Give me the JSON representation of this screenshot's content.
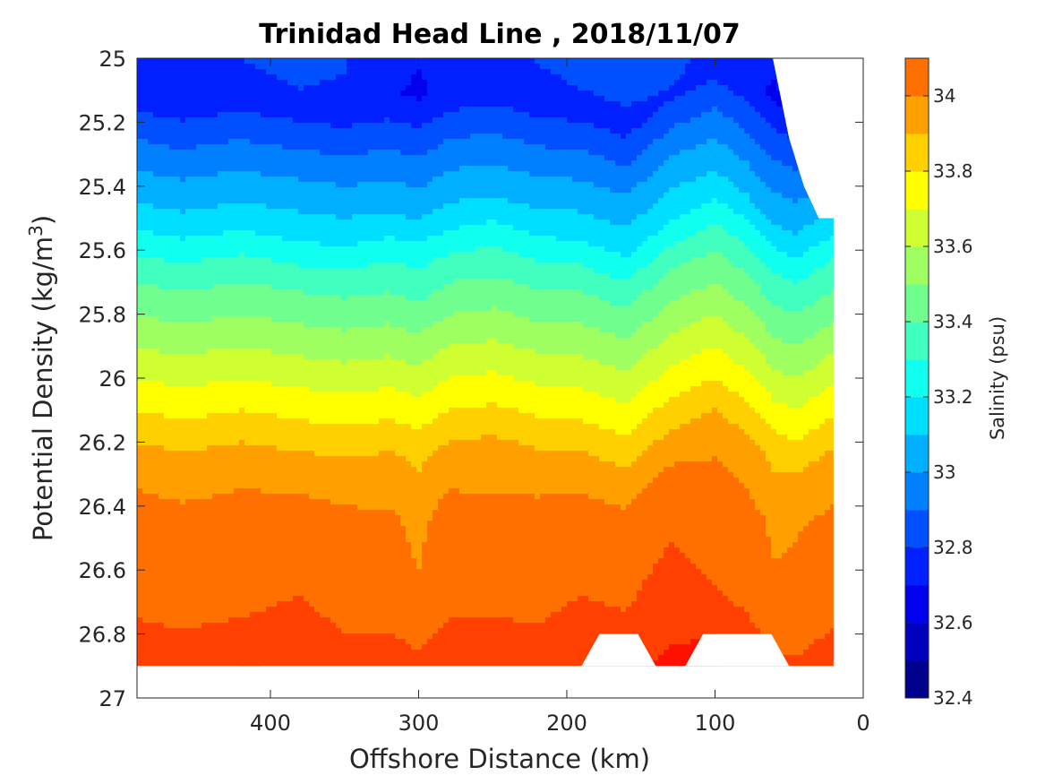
{
  "chart_data": {
    "type": "contour",
    "title": "Trinidad Head Line , 2018/11/07",
    "xlabel": "Offshore Distance (km)",
    "ylabel_main": "Potential Density (kg/m",
    "ylabel_sup": "3",
    "ylabel_close": ")",
    "colorbar_label": "Salinity (psu)",
    "x_range": [
      490,
      0
    ],
    "y_range": [
      25,
      27
    ],
    "x_ticks": [
      400,
      300,
      200,
      100,
      0
    ],
    "y_ticks": [
      25,
      25.2,
      25.4,
      25.6,
      25.8,
      26,
      26.2,
      26.4,
      26.6,
      26.8,
      27
    ],
    "y_tick_labels": [
      "25",
      "25.2",
      "25.4",
      "25.6",
      "25.8",
      "26",
      "26.2",
      "26.4",
      "26.6",
      "26.8",
      "27"
    ],
    "colorbar_range": [
      32.4,
      34.1
    ],
    "colorbar_ticks": [
      32.4,
      32.6,
      32.8,
      33,
      33.2,
      33.4,
      33.6,
      33.8,
      34
    ],
    "colorbar_tick_labels": [
      "32.4",
      "32.6",
      "32.8",
      "33",
      "33.2",
      "33.4",
      "33.6",
      "33.8",
      "34"
    ],
    "levels": [
      32.4,
      32.5,
      32.6,
      32.7,
      32.8,
      32.9,
      33.0,
      33.1,
      33.2,
      33.3,
      33.4,
      33.5,
      33.6,
      33.7,
      33.8,
      33.9,
      34.0,
      34.1
    ],
    "level_colors": [
      "#00008f",
      "#0000bf",
      "#0000ef",
      "#0020ff",
      "#0050ff",
      "#0080ff",
      "#00afff",
      "#00dfff",
      "#10ffef",
      "#40ffbf",
      "#70ff8f",
      "#9fff60",
      "#cfff30",
      "#ffff00",
      "#ffcf00",
      "#ff9f00",
      "#ff7000",
      "#ff4000",
      "#ff1000",
      "#df0000",
      "#af0000",
      "#800000"
    ],
    "colormap": "jet",
    "data_extent": {
      "distance_km": [
        490,
        20
      ],
      "density_bottom": 26.9,
      "surface_density_at_distance": [
        [
          490,
          25.0
        ],
        [
          61,
          25.0
        ],
        [
          50,
          25.25
        ],
        [
          40,
          25.4
        ],
        [
          30,
          25.5
        ],
        [
          20,
          25.5
        ]
      ]
    }
  }
}
